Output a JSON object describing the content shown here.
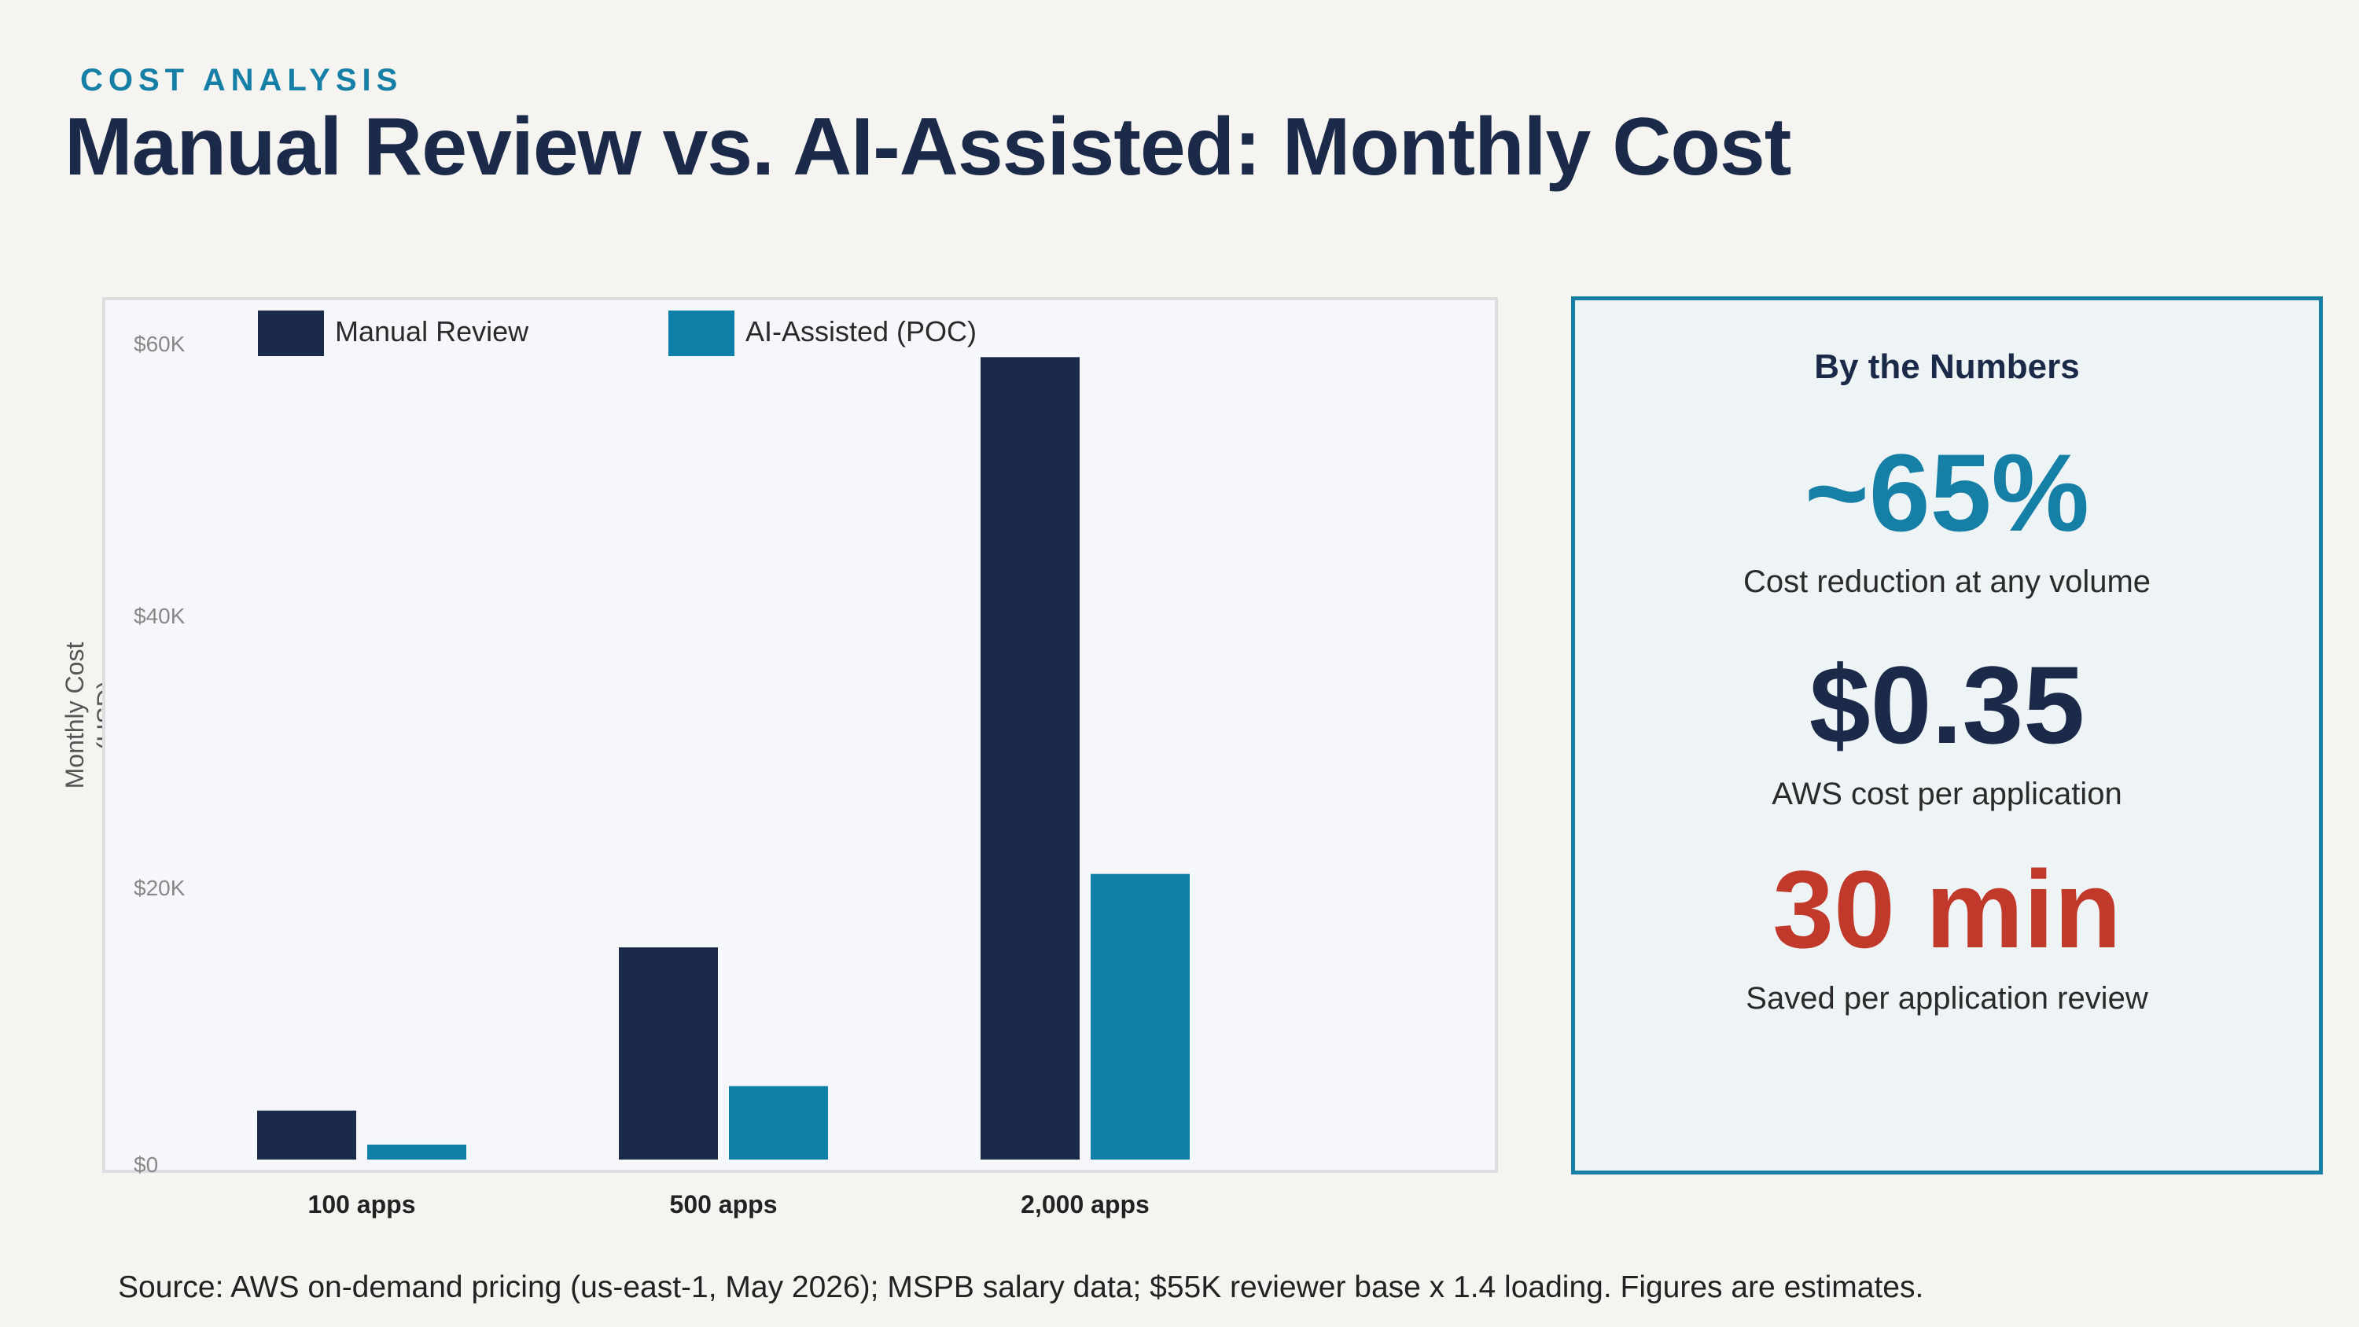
{
  "header": {
    "eyebrow": "COST ANALYSIS",
    "title": "Manual Review vs. AI-Assisted: Monthly Cost"
  },
  "chart_data": {
    "type": "bar",
    "categories": [
      "100 apps",
      "500 apps",
      "2,000 apps"
    ],
    "series": [
      {
        "name": "Manual Review",
        "color": "#1c2a4a",
        "values": [
          3600,
          15600,
          59000
        ]
      },
      {
        "name": "AI-Assisted (POC)",
        "color": "#0e7fa6",
        "values": [
          1100,
          5400,
          21000
        ]
      }
    ],
    "ylabel": "Monthly Cost (USD)",
    "ylabel_lines": [
      "Monthly Cost",
      "(USD)"
    ],
    "yticks": [
      {
        "value": 0,
        "label": "$0"
      },
      {
        "value": 20000,
        "label": "$20K"
      },
      {
        "value": 40000,
        "label": "$40K"
      },
      {
        "value": 60000,
        "label": "$60K"
      }
    ],
    "legend_position": "top-left",
    "grid": false
  },
  "stats": {
    "heading": "By the Numbers",
    "items": [
      {
        "value": "~65%",
        "label": "Cost reduction at any volume",
        "color": "#157fa6"
      },
      {
        "value": "$0.35",
        "label": "AWS cost per application",
        "color": "#1c2a4a"
      },
      {
        "value": "30 min",
        "label": "Saved per application review",
        "color": "#c0392b"
      }
    ]
  },
  "footer": {
    "source": "Source: AWS on-demand pricing (us-east-1, May 2026); MSPB salary data; $55K reviewer base x 1.4 loading. Figures are estimates."
  }
}
